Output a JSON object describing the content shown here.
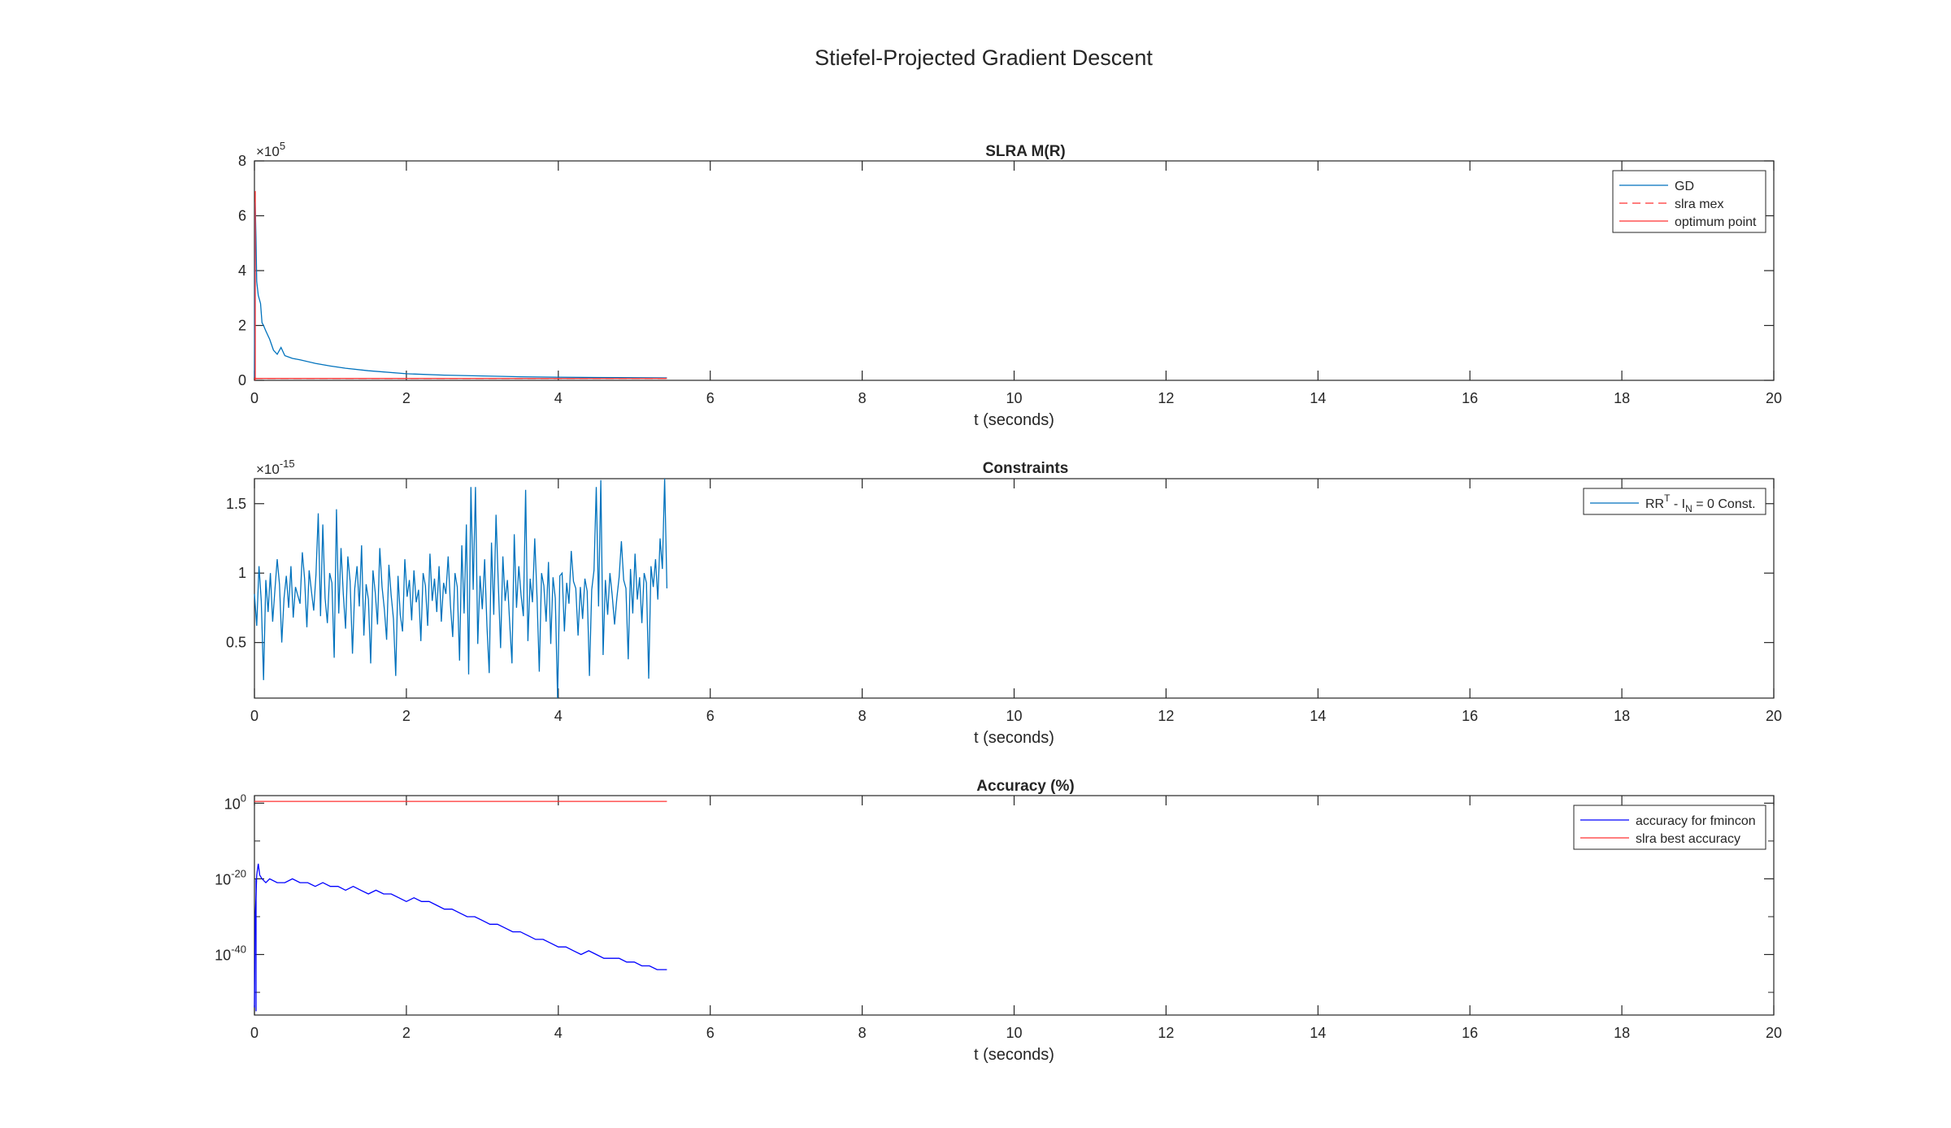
{
  "figure": {
    "title": "Stiefel-Projected Gradient Descent"
  },
  "chart_data": [
    {
      "type": "line",
      "title": "SLRA M(R)",
      "xlabel": "t (seconds)",
      "ylabel": "",
      "xlim": [
        0,
        20
      ],
      "ylim": [
        0,
        800000
      ],
      "xticks": [
        0,
        2,
        4,
        6,
        8,
        10,
        12,
        14,
        16,
        18,
        20
      ],
      "xtick_labels": [
        "0",
        "2",
        "4",
        "6",
        "8",
        "10",
        "12",
        "14",
        "16",
        "18",
        "20"
      ],
      "yticks": [
        0,
        200000,
        400000,
        600000,
        800000
      ],
      "ytick_labels": [
        "0",
        "2",
        "4",
        "6",
        "8"
      ],
      "yscale": "linear",
      "exponent": {
        "base": "×10",
        "power": "5"
      },
      "grid": false,
      "legend_position": "top-right",
      "legend": [
        "GD",
        "slra mex",
        "optimum point"
      ],
      "series": [
        {
          "name": "GD",
          "color": "#0072BD",
          "style": "solid",
          "x": [
            0,
            0.005,
            0.01,
            0.02,
            0.03,
            0.05,
            0.08,
            0.1,
            0.12,
            0.15,
            0.2,
            0.25,
            0.3,
            0.35,
            0.4,
            0.5,
            0.6,
            0.8,
            1.0,
            1.2,
            1.5,
            2.0,
            2.5,
            3.0,
            3.5,
            4.0,
            4.5,
            5.0,
            5.43
          ],
          "y": [
            10000,
            420000,
            650000,
            520000,
            360000,
            310000,
            280000,
            210000,
            200000,
            180000,
            150000,
            110000,
            95000,
            120000,
            90000,
            80000,
            75000,
            62000,
            52000,
            44000,
            35000,
            24000,
            19000,
            16000,
            13000,
            11500,
            10500,
            9500,
            9000
          ]
        },
        {
          "name": "slra mex",
          "color": "#FF3030",
          "style": "dashed",
          "x": [
            0,
            5.43
          ],
          "y": [
            7000,
            7000
          ]
        },
        {
          "name": "optimum point",
          "color": "#FF3030",
          "style": "solid",
          "x": [
            0,
            5.43
          ],
          "y": [
            7000,
            7000
          ]
        }
      ]
    },
    {
      "type": "line",
      "title": "Constraints",
      "xlabel": "t (seconds)",
      "ylabel": "",
      "xlim": [
        0,
        20
      ],
      "ylim": [
        1e-16,
        1.68e-15
      ],
      "xticks": [
        0,
        2,
        4,
        6,
        8,
        10,
        12,
        14,
        16,
        18,
        20
      ],
      "xtick_labels": [
        "0",
        "2",
        "4",
        "6",
        "8",
        "10",
        "12",
        "14",
        "16",
        "18",
        "20"
      ],
      "yticks": [
        5e-16,
        1e-15,
        1.5e-15
      ],
      "ytick_labels": [
        "0.5",
        "1",
        "1.5"
      ],
      "yscale": "linear",
      "exponent": {
        "base": "×10",
        "power": "-15"
      },
      "grid": false,
      "legend_position": "top-right",
      "legend": [
        "RRT - IN = 0 Const."
      ],
      "legend_parts": {
        "a": "RR",
        "b": "T",
        "c": " - I",
        "d": "N",
        "e": " = 0 Const."
      },
      "series": [
        {
          "name": "RRT - IN = 0 Const.",
          "color": "#0072BD",
          "style": "solid",
          "x": [
            0.0,
            0.03,
            0.06,
            0.09,
            0.12,
            0.15,
            0.18,
            0.21,
            0.24,
            0.27,
            0.3,
            0.33,
            0.36,
            0.39,
            0.42,
            0.45,
            0.48,
            0.51,
            0.54,
            0.57,
            0.6,
            0.63,
            0.66,
            0.69,
            0.72,
            0.75,
            0.78,
            0.81,
            0.84,
            0.87,
            0.9,
            0.93,
            0.96,
            0.99,
            1.02,
            1.05,
            1.08,
            1.11,
            1.14,
            1.17,
            1.2,
            1.23,
            1.26,
            1.29,
            1.32,
            1.35,
            1.38,
            1.41,
            1.44,
            1.47,
            1.5,
            1.53,
            1.56,
            1.59,
            1.62,
            1.65,
            1.68,
            1.71,
            1.74,
            1.77,
            1.8,
            1.83,
            1.86,
            1.89,
            1.92,
            1.95,
            1.98,
            2.01,
            2.04,
            2.07,
            2.1,
            2.13,
            2.16,
            2.19,
            2.22,
            2.25,
            2.28,
            2.31,
            2.34,
            2.37,
            2.4,
            2.43,
            2.46,
            2.49,
            2.52,
            2.55,
            2.58,
            2.61,
            2.64,
            2.67,
            2.7,
            2.73,
            2.76,
            2.79,
            2.82,
            2.85,
            2.88,
            2.91,
            2.94,
            2.97,
            3.0,
            3.03,
            3.06,
            3.09,
            3.12,
            3.15,
            3.18,
            3.21,
            3.24,
            3.27,
            3.3,
            3.33,
            3.36,
            3.39,
            3.42,
            3.45,
            3.48,
            3.51,
            3.54,
            3.57,
            3.6,
            3.63,
            3.66,
            3.69,
            3.72,
            3.75,
            3.78,
            3.81,
            3.84,
            3.87,
            3.9,
            3.93,
            3.96,
            3.99,
            4.02,
            4.05,
            4.08,
            4.11,
            4.14,
            4.17,
            4.2,
            4.23,
            4.26,
            4.29,
            4.32,
            4.35,
            4.38,
            4.41,
            4.44,
            4.47,
            4.5,
            4.53,
            4.56,
            4.59,
            4.62,
            4.65,
            4.68,
            4.71,
            4.74,
            4.77,
            4.8,
            4.83,
            4.86,
            4.89,
            4.92,
            4.95,
            4.98,
            5.01,
            5.04,
            5.07,
            5.1,
            5.13,
            5.16,
            5.19,
            5.22,
            5.25,
            5.28,
            5.31,
            5.34,
            5.37,
            5.4,
            5.43
          ],
          "y": [
            8.5e-16,
            6.2e-16,
            1.05e-15,
            8e-16,
            2.3e-16,
            9.5e-16,
            7.2e-16,
            1e-15,
            6.5e-16,
            8.8e-16,
            1.1e-15,
            9.2e-16,
            5e-16,
            8.2e-16,
            9.8e-16,
            7.5e-16,
            1.05e-15,
            6.8e-16,
            9e-16,
            8.4e-16,
            7.8e-16,
            1.15e-15,
            9.6e-16,
            6.1e-16,
            1.02e-15,
            8.7e-16,
            7.3e-16,
            9.9e-16,
            1.43e-15,
            6.9e-16,
            1.35e-15,
            8.2e-16,
            6.4e-16,
            1e-15,
            9.3e-16,
            3.9e-16,
            1.46e-15,
            7.1e-16,
            1.18e-15,
            8.5e-16,
            6e-16,
            1.12e-15,
            9.4e-16,
            4.2e-16,
            8.9e-16,
            1.05e-15,
            7.6e-16,
            1.2e-15,
            5.5e-16,
            9.2e-16,
            8.1e-16,
            3.5e-16,
            1.02e-15,
            8.6e-16,
            6.3e-16,
            1.18e-15,
            9e-16,
            7.4e-16,
            5.2e-16,
            1.06e-15,
            8.4e-16,
            6.7e-16,
            2.6e-16,
            9.8e-16,
            7e-16,
            5.8e-16,
            1.1e-15,
            8.3e-16,
            9.5e-16,
            6.6e-16,
            1.02e-15,
            7.9e-16,
            8.8e-16,
            5.1e-16,
            1e-15,
            9.1e-16,
            6.2e-16,
            1.14e-15,
            8e-16,
            9.6e-16,
            7.2e-16,
            1.05e-15,
            6.5e-16,
            9.3e-16,
            8.5e-16,
            1.12e-15,
            7.7e-16,
            5.4e-16,
            1e-15,
            9e-16,
            3.7e-16,
            1.2e-15,
            7.1e-16,
            1.35e-15,
            2.7e-16,
            1.62e-15,
            8.8e-16,
            1.62e-15,
            4.9e-16,
            9.8e-16,
            7.4e-16,
            1.1e-15,
            6.2e-16,
            2.8e-16,
            1.22e-15,
            7e-16,
            1.42e-15,
            9.2e-16,
            4.6e-16,
            1.12e-15,
            8e-16,
            9.5e-16,
            6.4e-16,
            3.5e-16,
            1.28e-15,
            7.5e-16,
            1.05e-15,
            8.4e-16,
            6.9e-16,
            1.6e-15,
            5.1e-16,
            9.6e-16,
            7.9e-16,
            1.25e-15,
            8.3e-16,
            2.9e-16,
            1e-15,
            9.1e-16,
            6.5e-16,
            1.08e-15,
            4.9e-16,
            9.7e-16,
            8.2e-16,
            1e-16,
            9.8e-16,
            1e-15,
            5.8e-16,
            9.3e-16,
            7.8e-16,
            1.16e-15,
            9.4e-16,
            8.9e-16,
            5.5e-16,
            9e-16,
            6.7e-16,
            9.6e-16,
            8.7e-16,
            2.6e-16,
            8.8e-16,
            1.02e-15,
            1.62e-15,
            7.6e-16,
            1.67e-15,
            4.1e-16,
            9.5e-16,
            7e-16,
            1e-15,
            8.4e-16,
            6.3e-16,
            8.2e-16,
            9.7e-16,
            1.23e-15,
            9.5e-16,
            8.9e-16,
            3.8e-16,
            1.03e-15,
            7.1e-16,
            1.14e-15,
            8.1e-16,
            9.7e-16,
            6.4e-16,
            1e-15,
            9.3e-16,
            2.4e-16,
            1.05e-15,
            9e-16,
            1.1e-15,
            8.1e-16,
            1.25e-15,
            1.03e-15,
            1.68e-15,
            8.9e-16
          ]
        }
      ]
    },
    {
      "type": "line",
      "title": "Accuracy (%)",
      "xlabel": "t (seconds)",
      "ylabel": "",
      "xlim": [
        0,
        20
      ],
      "ylim": [
        1e-56,
        100.0
      ],
      "xticks": [
        0,
        2,
        4,
        6,
        8,
        10,
        12,
        14,
        16,
        18,
        20
      ],
      "xtick_labels": [
        "0",
        "2",
        "4",
        "6",
        "8",
        "10",
        "12",
        "14",
        "16",
        "18",
        "20"
      ],
      "yticks": [
        1e-40,
        1e-20,
        1
      ],
      "ytick_labels": [
        {
          "base": "10",
          "exp": "-40"
        },
        {
          "base": "10",
          "exp": "-20"
        },
        {
          "base": "10",
          "exp": "0"
        }
      ],
      "yscale": "log",
      "grid": false,
      "legend_position": "top-right",
      "legend": [
        "accuracy for fmincon",
        "slra best accuracy"
      ],
      "series": [
        {
          "name": "accuracy for fmincon",
          "color": "#0000FF",
          "style": "solid",
          "x": [
            0.0,
            0.01,
            0.02,
            0.03,
            0.05,
            0.07,
            0.1,
            0.15,
            0.2,
            0.3,
            0.4,
            0.5,
            0.6,
            0.7,
            0.8,
            0.9,
            1.0,
            1.1,
            1.2,
            1.3,
            1.4,
            1.5,
            1.6,
            1.7,
            1.8,
            1.9,
            2.0,
            2.1,
            2.2,
            2.3,
            2.4,
            2.5,
            2.6,
            2.7,
            2.8,
            2.9,
            3.0,
            3.1,
            3.2,
            3.3,
            3.4,
            3.5,
            3.6,
            3.7,
            3.8,
            3.9,
            4.0,
            4.1,
            4.2,
            4.3,
            4.4,
            4.5,
            4.6,
            4.7,
            4.8,
            4.9,
            5.0,
            5.1,
            5.2,
            5.3,
            5.43
          ],
          "y": [
            1e-54,
            1e-30,
            1e-25,
            1e-19,
            1e-16,
            1e-19,
            1e-20,
            1e-21,
            1e-20,
            1e-21,
            1e-21,
            1e-20,
            1e-21,
            1e-21,
            1e-22,
            1e-21,
            1e-22,
            1e-22,
            1e-23,
            1e-22,
            1e-23,
            1e-24,
            1e-23,
            1e-24,
            1e-24,
            1e-25,
            1e-26,
            1e-25,
            1e-26,
            1e-26,
            1e-27,
            1e-28,
            1e-28,
            1e-29,
            1e-30,
            1e-30,
            1e-31,
            1e-32,
            1e-32,
            1e-33,
            1e-34,
            1e-34,
            1e-35,
            1e-36,
            1e-36,
            1e-37,
            1e-38,
            1e-38,
            1e-39,
            1e-40,
            1e-39,
            1e-40,
            1e-41,
            1e-41,
            1e-41,
            1e-42,
            1e-42,
            1e-43,
            1e-43,
            1e-44,
            1e-44
          ]
        },
        {
          "name": "slra best accuracy",
          "color": "#FF3030",
          "style": "solid",
          "x": [
            0,
            5.43
          ],
          "y": [
            3.0,
            3.0
          ]
        }
      ]
    }
  ]
}
